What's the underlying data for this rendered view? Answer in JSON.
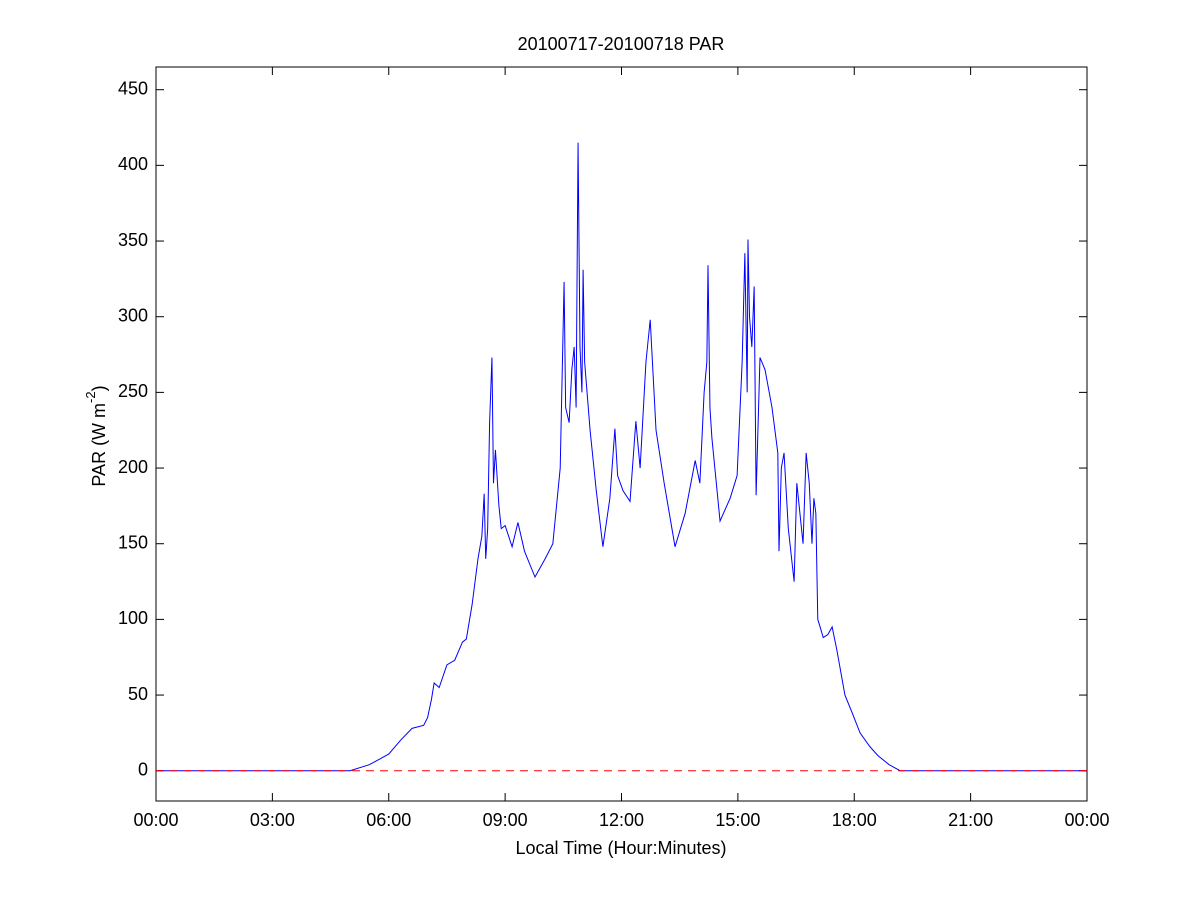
{
  "chart_data": {
    "type": "line",
    "title": "20100717-20100718 PAR",
    "x_label": "Local Time (Hour:Minutes)",
    "y_label_parts": [
      "PAR (W m",
      "-2",
      ")"
    ],
    "x": [
      0,
      5.0,
      5.5,
      6.0,
      6.3,
      6.6,
      6.9,
      7.0,
      7.1,
      7.17,
      7.3,
      7.5,
      7.7,
      7.9,
      8.0,
      8.15,
      8.3,
      8.4,
      8.46,
      8.5,
      8.55,
      8.6,
      8.66,
      8.7,
      8.75,
      8.84,
      8.9,
      9.0,
      9.18,
      9.33,
      9.5,
      9.77,
      10.03,
      10.23,
      10.42,
      10.52,
      10.56,
      10.65,
      10.72,
      10.78,
      10.83,
      10.88,
      10.93,
      10.98,
      11.01,
      11.05,
      11.19,
      11.35,
      11.52,
      11.7,
      11.83,
      11.9,
      12.04,
      12.22,
      12.37,
      12.48,
      12.63,
      12.74,
      12.89,
      13.1,
      13.38,
      13.64,
      13.9,
      14.02,
      14.13,
      14.2,
      14.23,
      14.28,
      14.33,
      14.54,
      14.8,
      14.98,
      15.11,
      15.18,
      15.24,
      15.26,
      15.3,
      15.36,
      15.42,
      15.47,
      15.57,
      15.7,
      15.88,
      16.03,
      16.06,
      16.12,
      16.19,
      16.3,
      16.45,
      16.52,
      16.6,
      16.68,
      16.76,
      16.84,
      16.91,
      16.96,
      17.01,
      17.06,
      17.12,
      17.2,
      17.32,
      17.43,
      17.55,
      17.76,
      17.95,
      18.15,
      18.4,
      18.61,
      18.9,
      19.18,
      24
    ],
    "series": [
      {
        "name": "PAR",
        "color": "#0000ff",
        "values": [
          0,
          0,
          4,
          11,
          20,
          28,
          30,
          35,
          47,
          58,
          55,
          70,
          73,
          85,
          87,
          110,
          140,
          155,
          183,
          140,
          160,
          230,
          273,
          190,
          212,
          175,
          160,
          162,
          148,
          164,
          145,
          128,
          140,
          150,
          200,
          323,
          240,
          230,
          265,
          280,
          240,
          415,
          280,
          250,
          331,
          270,
          225,
          185,
          148,
          180,
          226,
          195,
          185,
          178,
          231,
          200,
          270,
          298,
          225,
          190,
          148,
          170,
          205,
          190,
          250,
          270,
          334,
          240,
          220,
          165,
          180,
          195,
          270,
          342,
          250,
          351,
          300,
          280,
          320,
          182,
          273,
          265,
          240,
          210,
          145,
          200,
          210,
          160,
          125,
          190,
          170,
          150,
          210,
          190,
          150,
          180,
          170,
          100,
          95,
          88,
          90,
          95,
          80,
          50,
          38,
          25,
          16,
          10,
          4,
          0,
          0
        ]
      }
    ],
    "reference_line": {
      "value": 0,
      "color": "#ff0000"
    },
    "xlim": [
      0,
      24
    ],
    "xticks": [
      {
        "value": 0,
        "label": "00:00"
      },
      {
        "value": 3,
        "label": "03:00"
      },
      {
        "value": 6,
        "label": "06:00"
      },
      {
        "value": 9,
        "label": "09:00"
      },
      {
        "value": 12,
        "label": "12:00"
      },
      {
        "value": 15,
        "label": "15:00"
      },
      {
        "value": 18,
        "label": "18:00"
      },
      {
        "value": 21,
        "label": "21:00"
      },
      {
        "value": 24,
        "label": "00:00"
      }
    ],
    "ylim": [
      -20,
      465
    ],
    "yticks": [
      0,
      50,
      100,
      150,
      200,
      250,
      300,
      350,
      400,
      450
    ]
  }
}
